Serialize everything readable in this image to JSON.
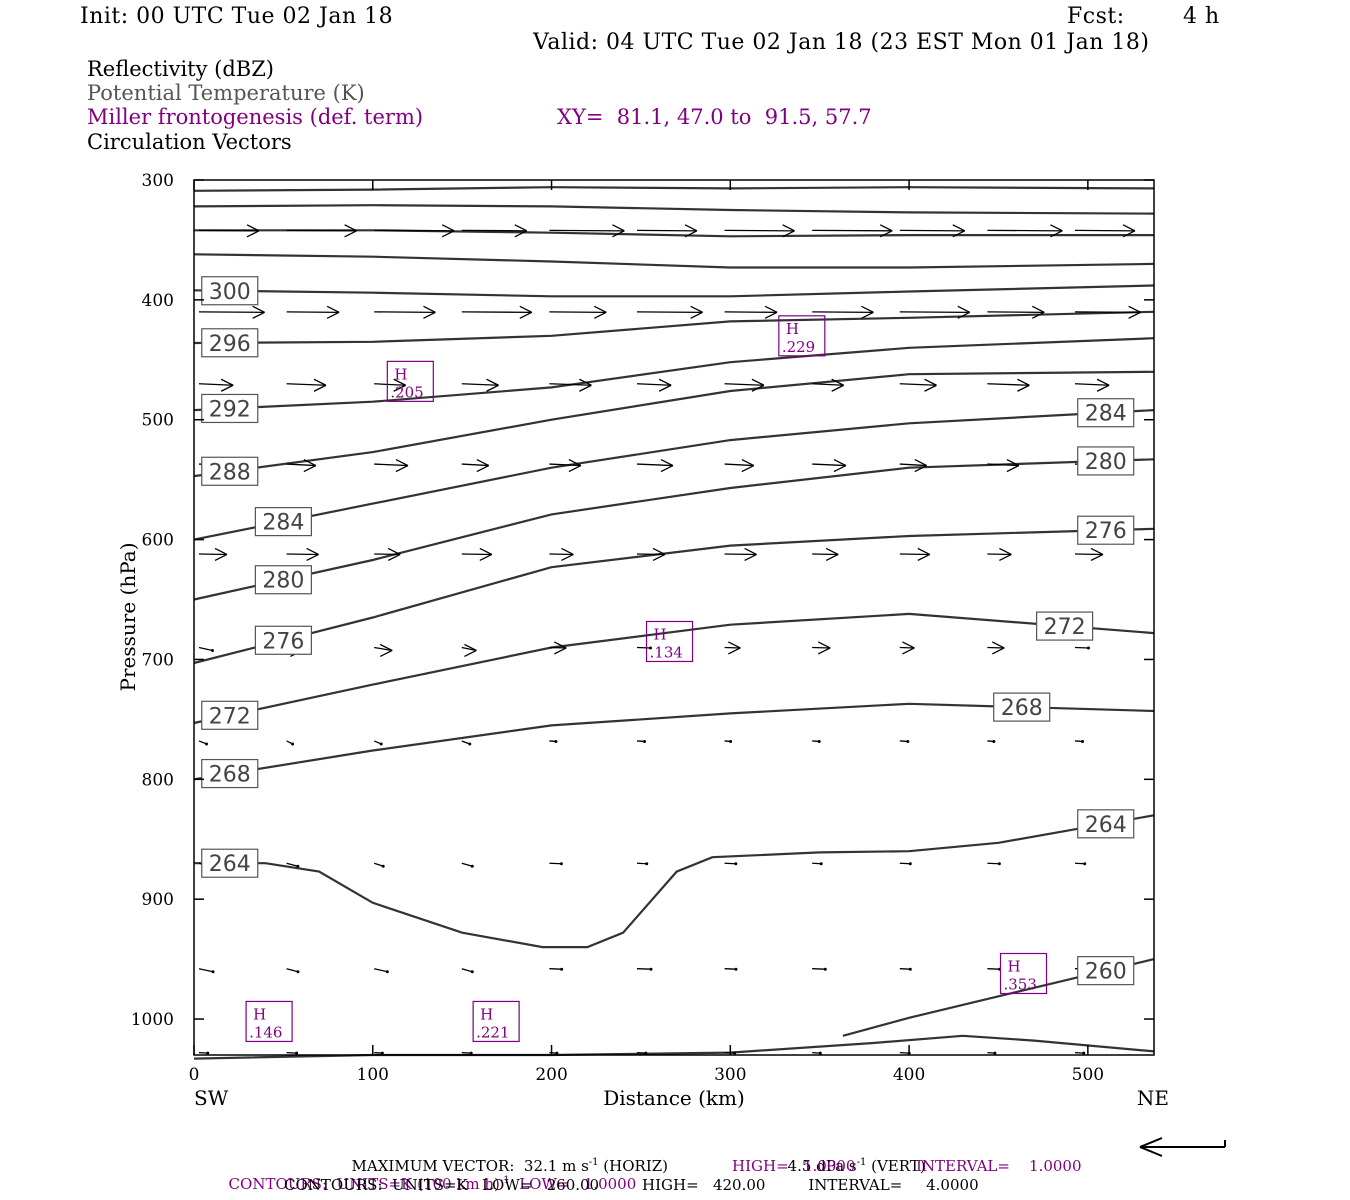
{
  "header": {
    "init": "Init: 00 UTC Tue 02 Jan 18",
    "fcst_label": "Fcst:",
    "fcst_value": "4 h",
    "valid": "Valid: 04 UTC Tue 02 Jan 18 (23 EST Mon 01 Jan 18)",
    "field1": "Reflectivity (dBZ)",
    "field2": "Potential Temperature (K)",
    "field3": "Miller frontogenesis (def. term)",
    "xy": "XY=  81.1, 47.0 to  91.5, 57.7",
    "field4": "Circulation Vectors"
  },
  "colors": {
    "purple": "#800080",
    "contour": "#333333",
    "axis": "#000000"
  },
  "footer": {
    "max_vector_prefix": "MAXIMUM VECTOR:  32.1 m s",
    "max_vector_exp": "-1",
    "max_vector_horiz": " (HORIZ)",
    "max_vector_vert_prefix": "4.5 dPa s",
    "max_vector_vert_exp": "-1",
    "max_vector_vert": " (VERT)",
    "contours1_prefix": "CONTOURS:  UNITS=K (100 km h)",
    "contours1_exp": "-1",
    "contours1_low": "  LOW=   1.0000",
    "contours1_high": "HIGH=   1.0000",
    "contours1_interval": "INTERVAL=    1.0000",
    "contours2": "CONTOURS:  UNITS=K   LOW=   260.00         HIGH=   420.00         INTERVAL=     4.0000"
  },
  "chart_data": {
    "type": "line",
    "xlabel": "Distance (km)",
    "ylabel": "Pressure (hPa)",
    "xlim": [
      0,
      537
    ],
    "ylim": [
      1030,
      300
    ],
    "x_ticks": [
      0,
      100,
      200,
      300,
      400,
      500
    ],
    "y_ticks": [
      300,
      400,
      500,
      600,
      700,
      800,
      900,
      1000
    ],
    "x_end_labels": {
      "left": "SW",
      "right": "NE"
    },
    "series": [
      {
        "name": "",
        "values": [
          [
            0,
            309
          ],
          [
            100,
            308
          ],
          [
            200,
            306
          ],
          [
            300,
            307
          ],
          [
            400,
            306
          ],
          [
            537,
            307
          ]
        ]
      },
      {
        "name": "",
        "values": [
          [
            0,
            322
          ],
          [
            100,
            321
          ],
          [
            200,
            322
          ],
          [
            300,
            325
          ],
          [
            400,
            327
          ],
          [
            537,
            328
          ]
        ]
      },
      {
        "name": "",
        "values": [
          [
            0,
            342
          ],
          [
            100,
            342
          ],
          [
            200,
            344
          ],
          [
            300,
            347
          ],
          [
            400,
            346
          ],
          [
            537,
            346
          ]
        ]
      },
      {
        "name": "",
        "values": [
          [
            0,
            362
          ],
          [
            100,
            364
          ],
          [
            200,
            368
          ],
          [
            300,
            373
          ],
          [
            400,
            373
          ],
          [
            537,
            370
          ]
        ]
      },
      {
        "name": "",
        "label": "300",
        "values": [
          [
            0,
            392
          ],
          [
            100,
            394
          ],
          [
            200,
            397
          ],
          [
            300,
            397
          ],
          [
            400,
            393
          ],
          [
            537,
            388
          ]
        ]
      },
      {
        "name": "",
        "label": "296",
        "values": [
          [
            0,
            436
          ],
          [
            100,
            435
          ],
          [
            200,
            430
          ],
          [
            300,
            418
          ],
          [
            400,
            415
          ],
          [
            537,
            410
          ]
        ]
      },
      {
        "name": "",
        "label": "292",
        "values": [
          [
            0,
            492
          ],
          [
            100,
            485
          ],
          [
            200,
            473
          ],
          [
            300,
            452
          ],
          [
            400,
            440
          ],
          [
            537,
            432
          ]
        ]
      },
      {
        "name": "",
        "label": "288",
        "values": [
          [
            0,
            547
          ],
          [
            100,
            527
          ],
          [
            200,
            500
          ],
          [
            300,
            476
          ],
          [
            400,
            462
          ],
          [
            537,
            460
          ]
        ]
      },
      {
        "name": "",
        "label": "284",
        "values": [
          [
            0,
            600
          ],
          [
            100,
            570
          ],
          [
            200,
            540
          ],
          [
            300,
            517
          ],
          [
            400,
            503
          ],
          [
            537,
            492
          ]
        ]
      },
      {
        "name": "",
        "label": "280",
        "values": [
          [
            0,
            650
          ],
          [
            100,
            617
          ],
          [
            200,
            579
          ],
          [
            300,
            557
          ],
          [
            400,
            540
          ],
          [
            537,
            533
          ]
        ]
      },
      {
        "name": "",
        "label": "276",
        "values": [
          [
            0,
            703
          ],
          [
            100,
            665
          ],
          [
            200,
            623
          ],
          [
            300,
            605
          ],
          [
            400,
            597
          ],
          [
            537,
            591
          ]
        ]
      },
      {
        "name": "",
        "label": "272",
        "values": [
          [
            0,
            753
          ],
          [
            100,
            721
          ],
          [
            200,
            690
          ],
          [
            300,
            671
          ],
          [
            400,
            662
          ],
          [
            537,
            678
          ]
        ]
      },
      {
        "name": "",
        "label": "268",
        "values": [
          [
            0,
            800
          ],
          [
            100,
            776
          ],
          [
            200,
            755
          ],
          [
            300,
            745
          ],
          [
            400,
            737
          ],
          [
            537,
            743
          ]
        ]
      },
      {
        "name": "",
        "label": "264",
        "values": [
          [
            0,
            870
          ],
          [
            40,
            870
          ],
          [
            70,
            877
          ],
          [
            100,
            903
          ],
          [
            150,
            928
          ],
          [
            195,
            940
          ],
          [
            220,
            940
          ],
          [
            240,
            928
          ],
          [
            270,
            877
          ],
          [
            290,
            865
          ],
          [
            350,
            861
          ],
          [
            400,
            860
          ],
          [
            450,
            853
          ],
          [
            537,
            830
          ]
        ]
      },
      {
        "name": "",
        "label": "260",
        "values": [
          [
            363,
            1014
          ],
          [
            400,
            999
          ],
          [
            450,
            981
          ],
          [
            537,
            950
          ]
        ]
      },
      {
        "name": "",
        "values": [
          [
            0,
            1033
          ],
          [
            100,
            1030
          ],
          [
            200,
            1030
          ],
          [
            300,
            1028
          ],
          [
            380,
            1020
          ],
          [
            430,
            1014
          ],
          [
            470,
            1018
          ],
          [
            537,
            1027
          ]
        ]
      }
    ],
    "maxima": [
      {
        "label": "H",
        "value": ".229",
        "x": 340,
        "p": 430
      },
      {
        "label": "H",
        "value": ".205",
        "x": 121,
        "p": 468
      },
      {
        "label": "H",
        "value": ".134",
        "x": 266,
        "p": 685
      },
      {
        "label": "H",
        "value": ".353",
        "x": 464,
        "p": 962
      },
      {
        "label": "H",
        "value": ".146",
        "x": 42,
        "p": 1002
      },
      {
        "label": "H",
        "value": ".221",
        "x": 169,
        "p": 1002
      }
    ],
    "vector_rows_hpa": [
      342,
      410,
      470,
      537,
      612,
      690,
      768,
      870,
      958,
      1028
    ]
  }
}
